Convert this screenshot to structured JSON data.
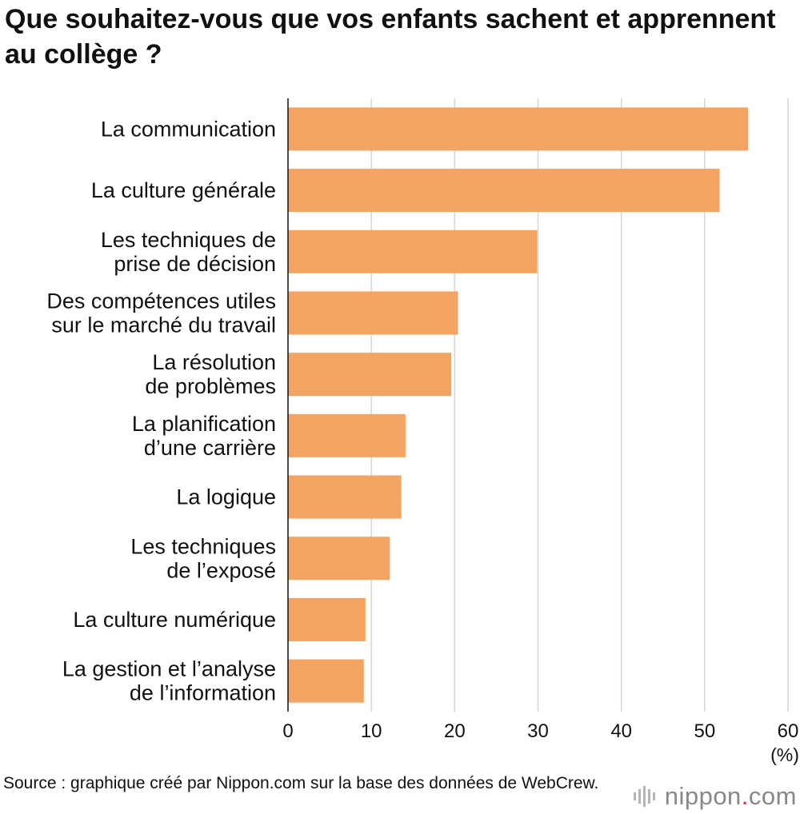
{
  "chart_data": {
    "type": "bar",
    "orientation": "horizontal",
    "title": "Que souhaitez-vous que vos enfants sachent et apprennent au collège ?",
    "categories": [
      [
        "La communication"
      ],
      [
        "La culture générale"
      ],
      [
        "Les techniques de",
        "prise de décision"
      ],
      [
        "Des compétences utiles",
        "sur le marché du travail"
      ],
      [
        "La résolution",
        "de problèmes"
      ],
      [
        "La planification",
        "d’une carrière"
      ],
      [
        "La logique"
      ],
      [
        "Les techniques",
        "de l’exposé"
      ],
      [
        "La culture numérique"
      ],
      [
        "La gestion et l’analyse",
        "de l’information"
      ]
    ],
    "values": [
      55.2,
      51.8,
      29.9,
      20.4,
      19.6,
      14.1,
      13.6,
      12.2,
      9.3,
      9.1
    ],
    "xlim": [
      0,
      60
    ],
    "xticks": [
      "0",
      "10",
      "20",
      "30",
      "40",
      "50",
      "60"
    ],
    "xlabel": "(%)",
    "grid": true,
    "bar_color": "#f4a462"
  },
  "source": "Source : graphique créé par Nippon.com sur la base des données de WebCrew.",
  "logo": {
    "name": "nippon",
    "dot": ".",
    "suffix": "com"
  }
}
